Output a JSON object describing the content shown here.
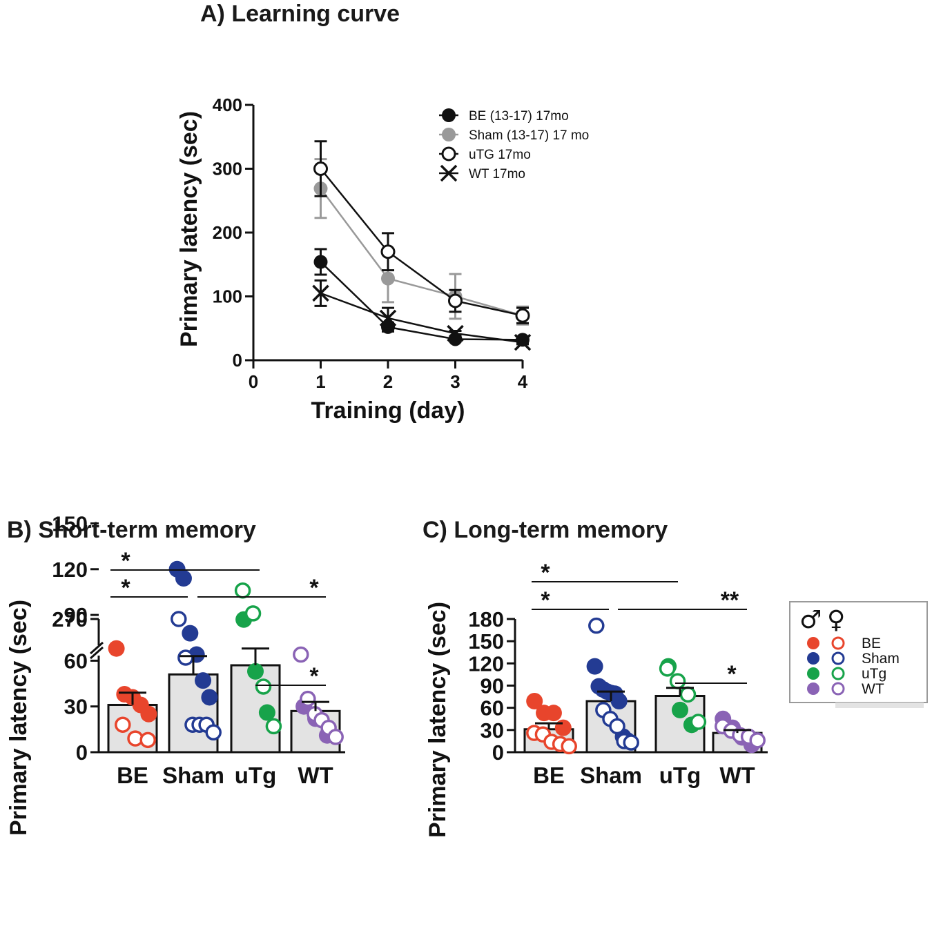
{
  "chart_data": [
    {
      "panel": "A",
      "type": "line",
      "title": "A) Learning curve",
      "xlabel": "Training (day)",
      "ylabel": "Primary latency (sec)",
      "xlim": [
        0,
        4
      ],
      "ylim": [
        0,
        400
      ],
      "xticks": [
        "0",
        "1",
        "2",
        "3",
        "4"
      ],
      "yticks": [
        "0",
        "100",
        "200",
        "300",
        "400"
      ],
      "x": [
        1,
        2,
        3,
        4
      ],
      "series": [
        {
          "name": "BE (13-17) 17mo",
          "marker": "filled-circle",
          "color": "#111111",
          "values": [
            154,
            52,
            33,
            32
          ],
          "errors": [
            20,
            7,
            4,
            4
          ]
        },
        {
          "name": "Sham (13-17) 17 mo",
          "marker": "filled-circle",
          "color": "#999999",
          "values": [
            269,
            128,
            100,
            70
          ],
          "errors": [
            46,
            37,
            35,
            14
          ]
        },
        {
          "name": "uTG 17mo",
          "marker": "open-circle",
          "color": "#111111",
          "values": [
            300,
            170,
            93,
            70
          ],
          "errors": [
            43,
            29,
            17,
            12
          ]
        },
        {
          "name": "WT 17mo",
          "marker": "x",
          "color": "#111111",
          "values": [
            105,
            66,
            42,
            28
          ],
          "errors": [
            20,
            16,
            4,
            3
          ]
        }
      ]
    },
    {
      "panel": "B",
      "type": "bar",
      "title": "B) Short-term memory",
      "xlabel": "",
      "ylabel": "Primary latency (sec)",
      "ylim": [
        0,
        270
      ],
      "axis_break": [
        150,
        270
      ],
      "yticks": [
        "0",
        "30",
        "60",
        "90",
        "120",
        "150",
        "270"
      ],
      "categories": [
        "BE",
        "Sham",
        "uTg",
        "WT"
      ],
      "values": [
        31,
        51,
        57,
        27
      ],
      "sem": [
        8,
        12,
        11,
        6
      ],
      "points": [
        {
          "male": [
            68,
            38,
            36,
            31,
            25
          ],
          "female": [
            18,
            9,
            8
          ]
        },
        {
          "male": [
            120,
            114,
            78,
            64,
            47,
            36
          ],
          "female": [
            270,
            62,
            18,
            18,
            18,
            13
          ]
        },
        {
          "male": [
            87,
            53,
            26
          ],
          "female": [
            106,
            91,
            43,
            17
          ]
        },
        {
          "male": [
            30,
            22,
            11
          ],
          "female": [
            64,
            35,
            25,
            21,
            16,
            10
          ]
        }
      ],
      "significance": [
        {
          "label": "*",
          "from": "BE",
          "to": "uTg"
        },
        {
          "label": "*",
          "from": "BE",
          "to": "Sham"
        },
        {
          "label": "*",
          "from": "Sham",
          "to": "WT"
        },
        {
          "label": "*",
          "from": "uTg",
          "to": "WT"
        }
      ]
    },
    {
      "panel": "C",
      "type": "bar",
      "title": "C) Long-term memory",
      "xlabel": "",
      "ylabel": "Primary latency (sec)",
      "ylim": [
        0,
        180
      ],
      "yticks": [
        "0",
        "30",
        "60",
        "90",
        "120",
        "150",
        "180"
      ],
      "categories": [
        "BE",
        "Sham",
        "uTg",
        "WT"
      ],
      "values": [
        31,
        69,
        76,
        26
      ],
      "sem": [
        8,
        13,
        11,
        4
      ],
      "points": [
        {
          "male": [
            69,
            53,
            53,
            33
          ],
          "female": [
            26,
            24,
            14,
            11,
            8
          ]
        },
        {
          "male": [
            116,
            89,
            85,
            82,
            80,
            79,
            69,
            21,
            16
          ],
          "female": [
            171,
            57,
            45,
            35,
            15,
            13
          ]
        },
        {
          "male": [
            116,
            57,
            37
          ],
          "female": [
            113,
            96,
            78,
            41
          ]
        },
        {
          "male": [
            45,
            33,
            20,
            10
          ],
          "female": [
            35,
            29,
            23,
            21,
            16
          ]
        }
      ],
      "significance": [
        {
          "label": "*",
          "from": "BE",
          "to": "uTg"
        },
        {
          "label": "*",
          "from": "BE",
          "to": "Sham"
        },
        {
          "label": "**",
          "from": "Sham",
          "to": "WT"
        },
        {
          "label": "*",
          "from": "uTg",
          "to": "WT"
        }
      ]
    }
  ],
  "sex_legend": {
    "male_symbol": "♂",
    "female_symbol": "♀",
    "groups": [
      {
        "label": "BE",
        "color": "#e8452c"
      },
      {
        "label": "Sham",
        "color": "#233b93"
      },
      {
        "label": "uTg",
        "color": "#17a34a"
      },
      {
        "label": "WT",
        "color": "#8a63b5"
      }
    ]
  }
}
